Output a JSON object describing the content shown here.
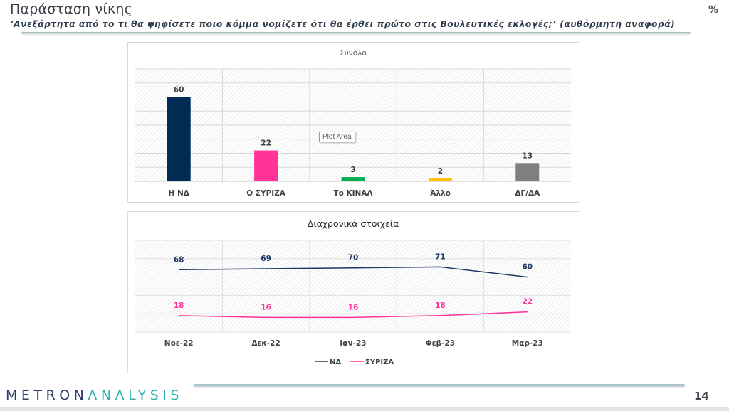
{
  "header": {
    "title": "Παράσταση νίκης",
    "subtitle": "‘Ανεξάρτητα από το τι θα ψηφίσετε ποιο κόμμα νομίζετε ότι θα έρθει πρώτο στις Βουλευτικές εκλογές;’ (αυθόρμητη αναφορά)",
    "unit": "%"
  },
  "footer": {
    "logo_part1": "METRON",
    "logo_part2": "ΛNΛLYSIS",
    "page_number": "14"
  },
  "tooltip": "Plot Area",
  "colors": {
    "nd": "#002b55",
    "syriza": "#ff3399",
    "kinal": "#00b050",
    "other": "#ffc000",
    "dk": "#7f7f7f",
    "nd_line": "#1f3864",
    "syriza_line": "#ff3399"
  },
  "chart_data": [
    {
      "type": "bar",
      "title": "Σύνολο",
      "categories": [
        "Η ΝΔ",
        "Ο ΣΥΡΙΖΑ",
        "Το ΚΙΝΑΛ",
        "Άλλο",
        "ΔΓ/ΔΑ"
      ],
      "values": [
        60,
        22,
        3,
        2,
        13
      ],
      "value_labels": [
        "60",
        "22",
        "3",
        "2",
        "13"
      ],
      "bar_colors": [
        "#002b55",
        "#ff3399",
        "#00b050",
        "#ffc000",
        "#7f7f7f"
      ],
      "xlabel": "",
      "ylabel": "",
      "ylim": [
        0,
        80
      ],
      "grid": true
    },
    {
      "type": "line",
      "title": "Διαχρονικά στοιχεία",
      "categories": [
        "Νοε-22",
        "Δεκ-22",
        "Ιαν-23",
        "Φεβ-23",
        "Μαρ-23"
      ],
      "series": [
        {
          "name": "ΝΔ",
          "values": [
            68,
            69,
            70,
            71,
            60
          ],
          "labels": [
            "68",
            "69",
            "70",
            "71",
            "60"
          ],
          "color": "#1f3864"
        },
        {
          "name": "ΣΥΡΙΖΑ",
          "values": [
            18,
            16,
            16,
            18,
            22
          ],
          "labels": [
            "18",
            "16",
            "16",
            "18",
            "22"
          ],
          "color": "#ff3399"
        }
      ],
      "xlabel": "",
      "ylabel": "",
      "ylim": [
        0,
        100
      ],
      "grid": true,
      "legend": "bottom"
    }
  ]
}
